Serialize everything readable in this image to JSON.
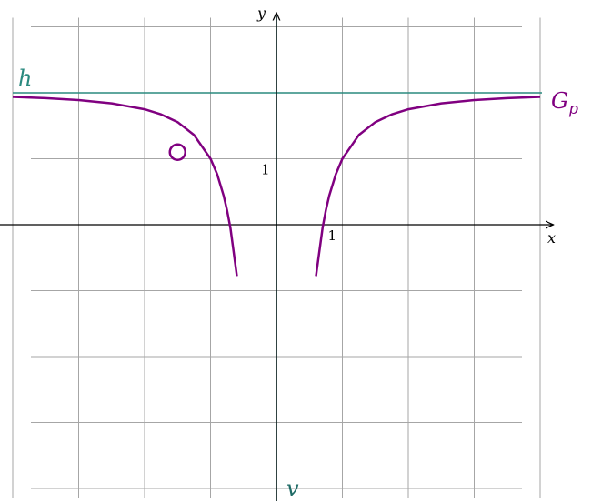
{
  "chart_data": {
    "type": "line",
    "title": "",
    "xlabel": "x",
    "ylabel": "y",
    "xlim": [
      -4,
      4
    ],
    "ylim": [
      -4,
      3
    ],
    "x_axis_extent": [
      -4.2,
      4.2
    ],
    "y_axis_extent": [
      -4.2,
      3.2
    ],
    "grid": true,
    "grid_step": 1,
    "ticks": {
      "x": [
        {
          "value": 1,
          "label": "1"
        }
      ],
      "y": [
        {
          "value": 1,
          "label": "1"
        }
      ]
    },
    "asymptotes": [
      {
        "name": "h",
        "orientation": "horizontal",
        "value": 2,
        "color": "#2a8a7f"
      },
      {
        "name": "v",
        "orientation": "vertical",
        "value": 0,
        "color": "#1f6b66"
      }
    ],
    "series": [
      {
        "name": "G_p",
        "label_main": "G",
        "label_sub": "p",
        "color": "#800080",
        "branches": [
          {
            "x": [
              -4,
              -3.5,
              -3,
              -2.5,
              -2,
              -1.75,
              -1.5,
              -1.25,
              -1,
              -0.9,
              -0.8,
              -0.75,
              -0.7,
              -0.6
            ],
            "y": [
              1.9375,
              1.918,
              1.889,
              1.84,
              1.75,
              1.673,
              1.556,
              1.36,
              1,
              0.765,
              0.4375,
              0.222,
              -0.041,
              -0.778
            ]
          },
          {
            "x": [
              0.6,
              0.7,
              0.75,
              0.8,
              0.9,
              1,
              1.25,
              1.5,
              1.75,
              2,
              2.5,
              3,
              3.5,
              4
            ],
            "y": [
              -0.778,
              -0.041,
              0.222,
              0.4375,
              0.765,
              1,
              1.36,
              1.556,
              1.673,
              1.75,
              1.84,
              1.889,
              1.918,
              1.9375
            ]
          }
        ]
      }
    ],
    "open_points": [
      {
        "x": -1.5,
        "y": 1.1,
        "color": "#800080"
      }
    ]
  }
}
